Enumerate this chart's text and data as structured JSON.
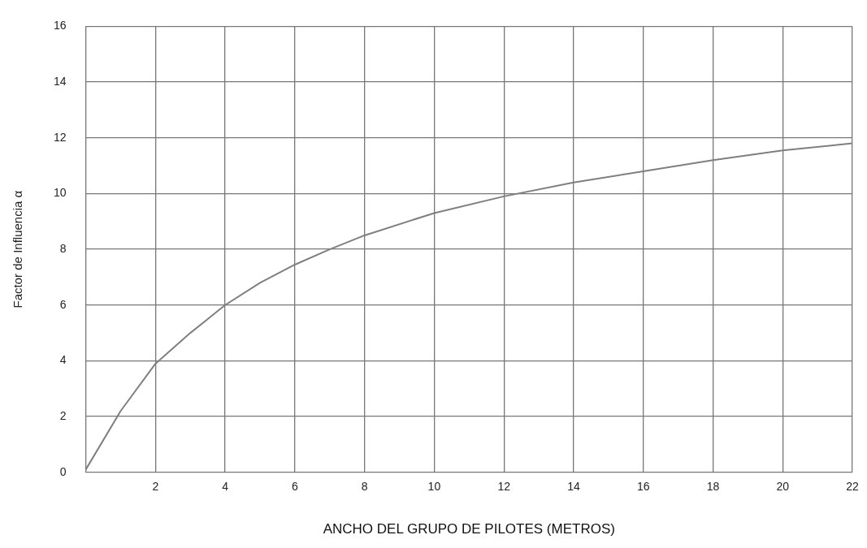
{
  "chart_data": {
    "type": "line",
    "xlabel": "ANCHO DEL GRUPO DE PILOTES (METROS)",
    "ylabel": "Factor de Influencia α",
    "x": [
      0,
      1,
      2,
      3,
      4,
      5,
      6,
      7,
      8,
      10,
      12,
      14,
      16,
      18,
      20,
      22
    ],
    "series": [
      {
        "color": "#7f7f7f",
        "values": [
          0.1,
          2.2,
          3.9,
          5.0,
          6.0,
          6.8,
          7.45,
          8.0,
          8.5,
          9.3,
          9.9,
          10.4,
          10.8,
          11.2,
          11.55,
          11.8
        ]
      }
    ],
    "xlim": [
      0,
      22
    ],
    "xticks": [
      {
        "value": 0,
        "label": null
      },
      2,
      4,
      6,
      8,
      10,
      12,
      14,
      16,
      18,
      20,
      22
    ],
    "ylim": [
      0,
      16
    ],
    "yticks": [
      0,
      2,
      4,
      6,
      8,
      10,
      12,
      14,
      16
    ],
    "grid": true,
    "legend": false,
    "marker": "none",
    "line_style": "solid"
  }
}
